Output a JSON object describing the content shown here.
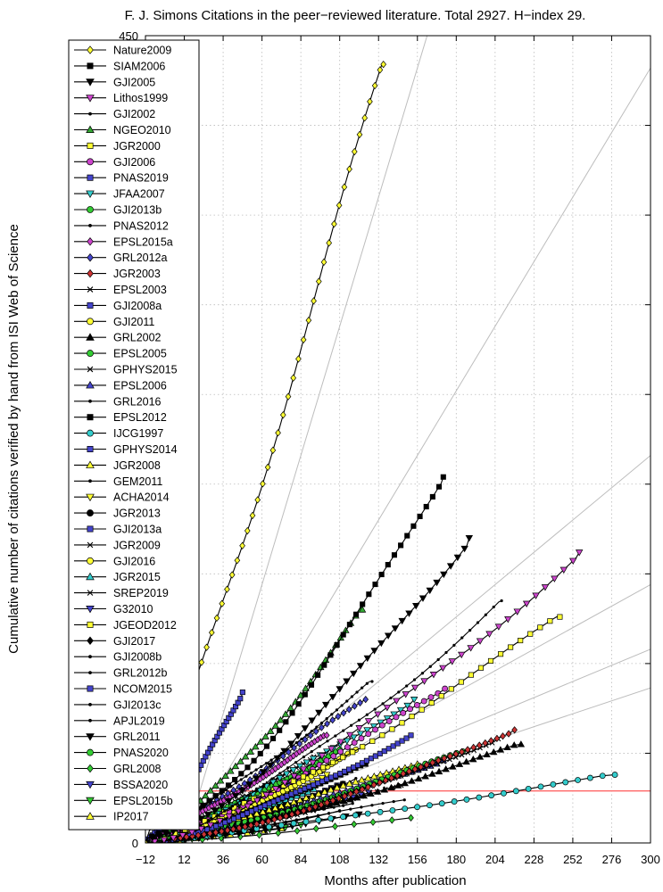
{
  "chart_data": {
    "type": "line",
    "title": "F. J. Simons Citations in the peer−reviewed literature. Total 2927. H−index 29.",
    "xlabel": "Months after publication",
    "ylabel": "Cumulative number of citations verified by hand from ISI Web of Science",
    "xlim": [
      -12,
      300
    ],
    "ylim": [
      0,
      450
    ],
    "x_ticks": [
      "−12",
      "12",
      "36",
      "60",
      "84",
      "108",
      "132",
      "156",
      "180",
      "204",
      "228",
      "252",
      "276",
      "300"
    ],
    "x_tick_values": [
      -12,
      12,
      36,
      60,
      84,
      108,
      132,
      156,
      180,
      204,
      228,
      252,
      276,
      300
    ],
    "y_ticks": [
      "0",
      "50",
      "100",
      "150",
      "200",
      "250",
      "300",
      "350",
      "400",
      "450"
    ],
    "y_tick_values": [
      0,
      50,
      100,
      150,
      200,
      250,
      300,
      350,
      400,
      450
    ],
    "grid": true,
    "legend_position": "top-left",
    "h_index_line": {
      "y": 29,
      "color": "#ff6666"
    },
    "reference_slopes": [
      3,
      1.5,
      0.75,
      0.5,
      0.375,
      0.3
    ],
    "series": [
      {
        "name": "Nature2009",
        "marker": "diamond",
        "color": "#ffff33",
        "months": 147,
        "total": 434
      },
      {
        "name": "SIAM2006",
        "marker": "square",
        "color": "#000000",
        "months": 184,
        "total": 204
      },
      {
        "name": "GJI2005",
        "marker": "triangle-down",
        "color": "#000000",
        "months": 200,
        "total": 170
      },
      {
        "name": "Lithos1999",
        "marker": "triangle-down",
        "color": "#cc44cc",
        "months": 268,
        "total": 162
      },
      {
        "name": "GJI2002",
        "marker": "dot",
        "color": "#000000",
        "months": 220,
        "total": 135
      },
      {
        "name": "NGEO2010",
        "marker": "triangle-up",
        "color": "#33aa33",
        "months": 134,
        "total": 130
      },
      {
        "name": "JGR2000",
        "marker": "square",
        "color": "#ffff33",
        "months": 256,
        "total": 126
      },
      {
        "name": "GJI2006",
        "marker": "circle",
        "color": "#cc44cc",
        "months": 185,
        "total": 86
      },
      {
        "name": "PNAS2019",
        "marker": "square",
        "color": "#4444cc",
        "months": 60,
        "total": 84
      },
      {
        "name": "JFAA2007",
        "marker": "triangle-down",
        "color": "#33cccc",
        "months": 166,
        "total": 80
      },
      {
        "name": "GJI2013b",
        "marker": "circle",
        "color": "#33cc33",
        "months": 120,
        "total": 52
      },
      {
        "name": "PNAS2012",
        "marker": "dot",
        "color": "#000000",
        "months": 140,
        "total": 90
      },
      {
        "name": "EPSL2015a",
        "marker": "diamond",
        "color": "#cc44cc",
        "months": 112,
        "total": 60
      },
      {
        "name": "GRL2012a",
        "marker": "diamond",
        "color": "#4444cc",
        "months": 136,
        "total": 80
      },
      {
        "name": "JGR2003",
        "marker": "diamond",
        "color": "#cc3333",
        "months": 228,
        "total": 63
      },
      {
        "name": "EPSL2003",
        "marker": "cross",
        "color": "#000000",
        "months": 218,
        "total": 58
      },
      {
        "name": "GJI2008a",
        "marker": "square",
        "color": "#4444cc",
        "months": 164,
        "total": 60
      },
      {
        "name": "GJI2011",
        "marker": "circle",
        "color": "#ffff33",
        "months": 130,
        "total": 52
      },
      {
        "name": "GRL2002",
        "marker": "triangle-up",
        "color": "#000000",
        "months": 232,
        "total": 55
      },
      {
        "name": "EPSL2005",
        "marker": "circle",
        "color": "#33cc33",
        "months": 196,
        "total": 51
      },
      {
        "name": "GPHYS2015",
        "marker": "cross",
        "color": "#000000",
        "months": 104,
        "total": 48
      },
      {
        "name": "EPSL2006",
        "marker": "triangle-up",
        "color": "#4444cc",
        "months": 184,
        "total": 46
      },
      {
        "name": "GRL2016",
        "marker": "dot",
        "color": "#000000",
        "months": 96,
        "total": 40
      },
      {
        "name": "EPSL2012",
        "marker": "square",
        "color": "#000000",
        "months": 136,
        "total": 44
      },
      {
        "name": "IJCG1997",
        "marker": "circle",
        "color": "#33cccc",
        "months": 290,
        "total": 38
      },
      {
        "name": "GPHYS2014",
        "marker": "square",
        "color": "#4444cc",
        "months": 108,
        "total": 40
      },
      {
        "name": "JGR2008",
        "marker": "triangle-up",
        "color": "#ffff33",
        "months": 168,
        "total": 44
      },
      {
        "name": "GEM2011",
        "marker": "dot",
        "color": "#000000",
        "months": 130,
        "total": 36
      },
      {
        "name": "ACHA2014",
        "marker": "triangle-down",
        "color": "#ffff33",
        "months": 112,
        "total": 38
      },
      {
        "name": "JGR2013",
        "marker": "circle",
        "color": "#000000",
        "months": 122,
        "total": 33
      },
      {
        "name": "GJI2013a",
        "marker": "square",
        "color": "#4444cc",
        "months": 122,
        "total": 33
      },
      {
        "name": "JGR2009",
        "marker": "cross",
        "color": "#000000",
        "months": 158,
        "total": 32
      },
      {
        "name": "GJI2016",
        "marker": "circle",
        "color": "#ffff33",
        "months": 96,
        "total": 30
      },
      {
        "name": "JGR2015",
        "marker": "triangle-up",
        "color": "#33cccc",
        "months": 104,
        "total": 30
      },
      {
        "name": "SREP2019",
        "marker": "cross",
        "color": "#000000",
        "months": 60,
        "total": 26
      },
      {
        "name": "G32010",
        "marker": "triangle-down",
        "color": "#4444cc",
        "months": 138,
        "total": 28
      },
      {
        "name": "JGEOD2012",
        "marker": "square",
        "color": "#ffff33",
        "months": 120,
        "total": 24
      },
      {
        "name": "GJI2017",
        "marker": "diamond",
        "color": "#000000",
        "months": 86,
        "total": 22
      },
      {
        "name": "GJI2008b",
        "marker": "dot",
        "color": "#000000",
        "months": 160,
        "total": 24
      },
      {
        "name": "GRL2012b",
        "marker": "dot",
        "color": "#000000",
        "months": 128,
        "total": 22
      },
      {
        "name": "NCOM2015",
        "marker": "square",
        "color": "#4444cc",
        "months": 100,
        "total": 20
      },
      {
        "name": "GJI2013c",
        "marker": "dot",
        "color": "#000000",
        "months": 120,
        "total": 18
      },
      {
        "name": "APJL2019",
        "marker": "dot",
        "color": "#000000",
        "months": 54,
        "total": 16
      },
      {
        "name": "GRL2011",
        "marker": "triangle-down",
        "color": "#000000",
        "months": 132,
        "total": 16
      },
      {
        "name": "PNAS2020",
        "marker": "circle",
        "color": "#33cc33",
        "months": 42,
        "total": 14
      },
      {
        "name": "GRL2008",
        "marker": "diamond",
        "color": "#33cc33",
        "months": 164,
        "total": 14
      },
      {
        "name": "BSSA2020",
        "marker": "triangle-down",
        "color": "#4444cc",
        "months": 42,
        "total": 12
      },
      {
        "name": "EPSL2015b",
        "marker": "triangle-down",
        "color": "#33cc33",
        "months": 96,
        "total": 10
      },
      {
        "name": "IP2017",
        "marker": "triangle-up",
        "color": "#ffff33",
        "months": 84,
        "total": 8
      }
    ]
  }
}
